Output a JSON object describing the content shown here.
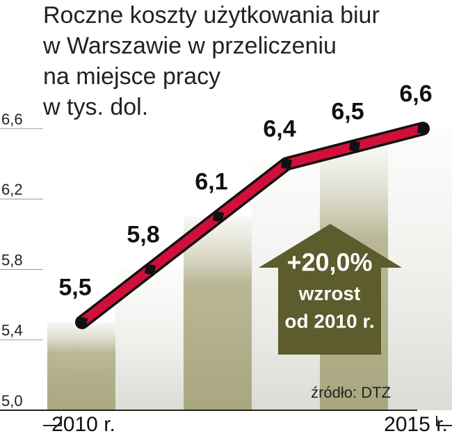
{
  "chart_data": {
    "type": "line",
    "title": [
      "Roczne koszty użytkowania biur",
      "w Warszawie w przeliczeniu",
      "na miejsce pracy",
      "w tys. dol."
    ],
    "categories": [
      "2010 r.",
      null,
      null,
      null,
      null,
      "2015 r."
    ],
    "values": [
      5.5,
      5.8,
      6.1,
      6.4,
      6.5,
      6.6
    ],
    "value_labels": [
      "5,5",
      "5,8",
      "6,1",
      "6,4",
      "6,5",
      "6,6"
    ],
    "color": "#d0103a",
    "ylim": [
      5.0,
      6.6
    ],
    "yticks": [
      {
        "value": 5.0,
        "label": "5,0"
      },
      {
        "value": 5.4,
        "label": "5,4"
      },
      {
        "value": 5.8,
        "label": "5,8"
      },
      {
        "value": 6.2,
        "label": "6,2"
      },
      {
        "value": 6.6,
        "label": "6,6"
      }
    ],
    "annotation": [
      "+20,0%",
      "wzrost",
      "od 2010 r."
    ],
    "source": "źródło: DTZ"
  }
}
